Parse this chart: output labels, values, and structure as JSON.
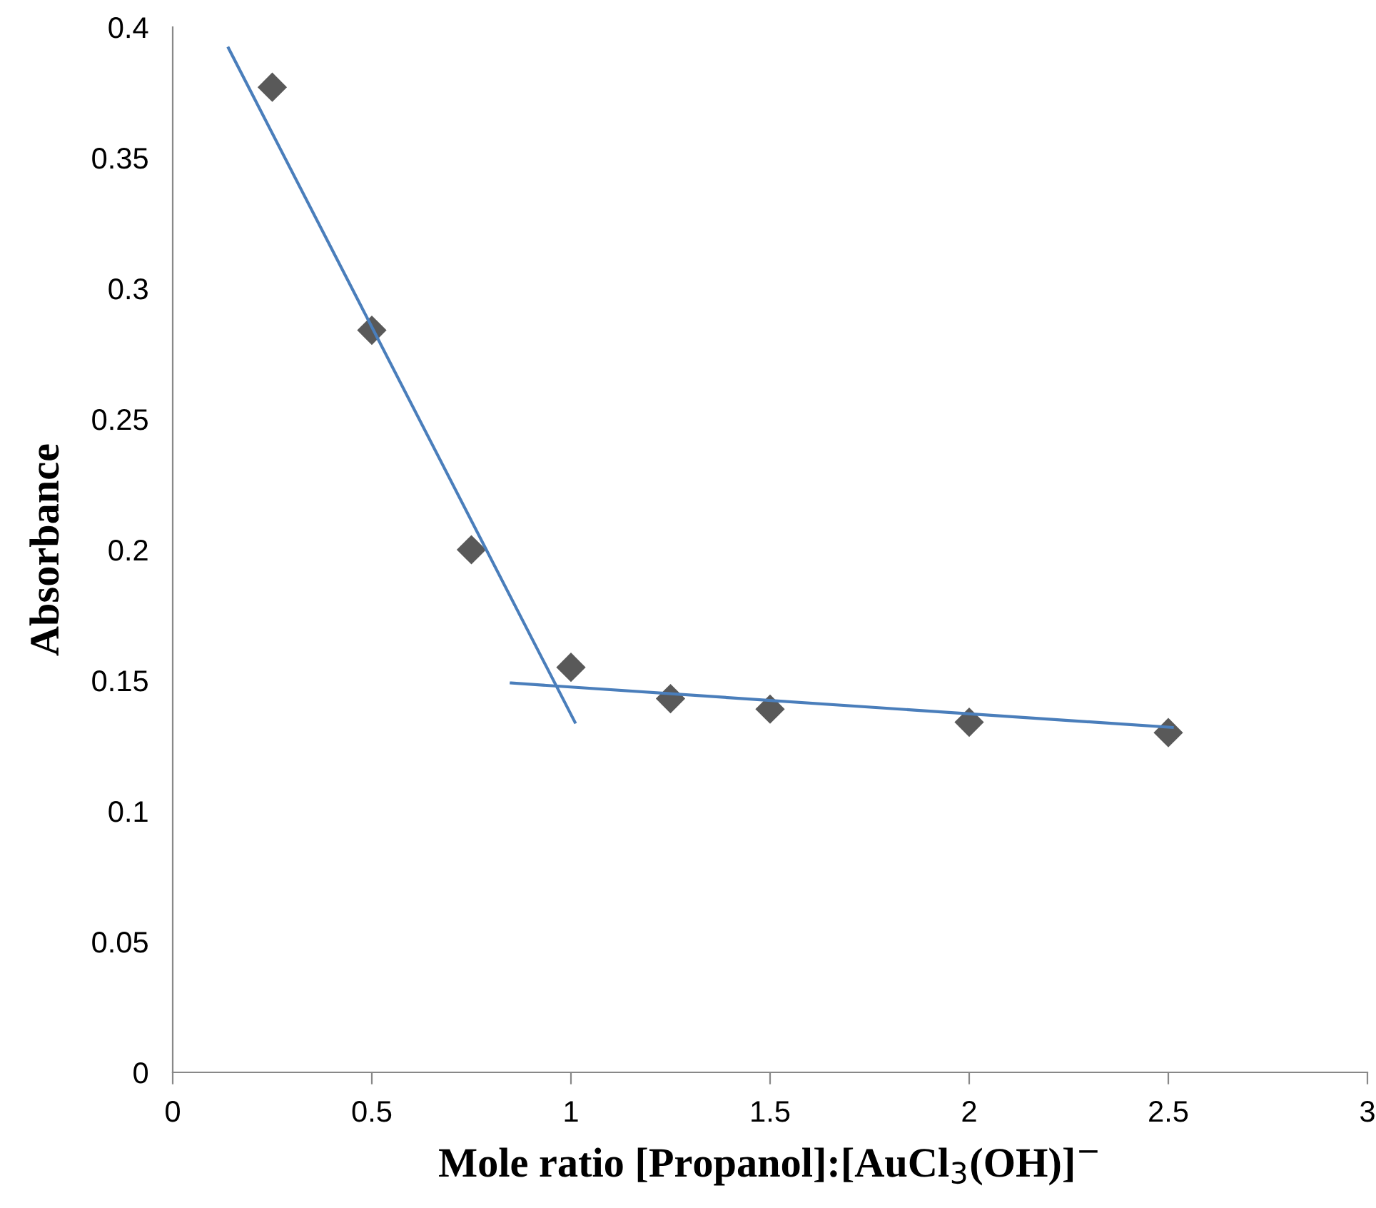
{
  "chart_data": {
    "type": "scatter",
    "xlabel": "Mole ratio [Propanol]:[AuCl$_{3}$(OH)]$^{−}$",
    "ylabel": "Absorbance",
    "series": [
      {
        "color": "#595959",
        "marker": "diamond",
        "x": [
          0.25,
          0.5,
          0.75,
          1.0,
          1.25,
          1.5,
          2.0,
          2.5
        ],
        "values": [
          0.377,
          0.284,
          0.2,
          0.155,
          0.143,
          0.139,
          0.134,
          0.13
        ]
      },
      {
        "type": "line",
        "color": "#4a7ebb",
        "line_style": "solid",
        "x": [
          0.14,
          1.01
        ],
        "values": [
          0.392,
          0.134
        ]
      },
      {
        "type": "line",
        "color": "#4a7ebb",
        "line_style": "solid",
        "x": [
          0.85,
          2.51
        ],
        "values": [
          0.149,
          0.132
        ]
      }
    ],
    "xlim": [
      0,
      3
    ],
    "xticks": [
      0,
      0.5,
      1,
      1.5,
      2,
      2.5,
      3
    ],
    "ylim": [
      0,
      0.4
    ],
    "yticks": [
      0,
      0.05,
      0.1,
      0.15,
      0.2,
      0.25,
      0.3,
      0.35,
      0.4
    ],
    "grid": false,
    "legend": false
  }
}
